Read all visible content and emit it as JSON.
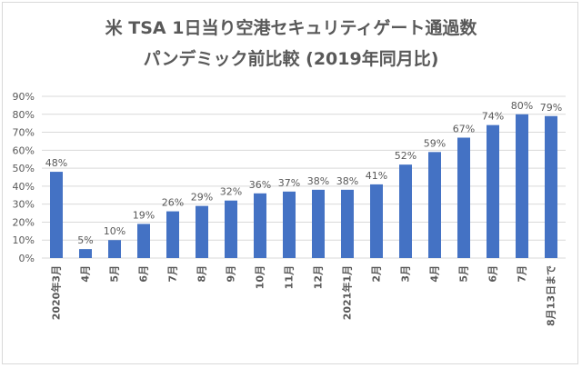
{
  "chart_data": {
    "type": "bar",
    "title": "米 TSA 1日当り空港セキュリティゲート通過数",
    "subtitle": "パンデミック前比較 (2019年同月比)",
    "categories": [
      "2020年3月",
      "4月",
      "5月",
      "6月",
      "7月",
      "8月",
      "9月",
      "10月",
      "11月",
      "12月",
      "2021年1月",
      "2月",
      "3月",
      "4月",
      "5月",
      "6月",
      "7月",
      "8月13日まで"
    ],
    "values": [
      48,
      5,
      10,
      19,
      26,
      29,
      32,
      36,
      37,
      38,
      38,
      41,
      52,
      59,
      67,
      74,
      80,
      79
    ],
    "data_labels": [
      "48%",
      "5%",
      "10%",
      "19%",
      "26%",
      "29%",
      "32%",
      "36%",
      "37%",
      "38%",
      "38%",
      "41%",
      "52%",
      "59%",
      "67%",
      "74%",
      "80%",
      "79%"
    ],
    "y_ticks": [
      "0%",
      "10%",
      "20%",
      "30%",
      "40%",
      "50%",
      "60%",
      "70%",
      "80%",
      "90%"
    ],
    "ylim": [
      0,
      90
    ],
    "xlabel": "",
    "ylabel": "",
    "grid": true,
    "bar_color": "#4472c4",
    "grid_color": "#d9d9d9",
    "text_color": "#595959",
    "legend": "none"
  }
}
